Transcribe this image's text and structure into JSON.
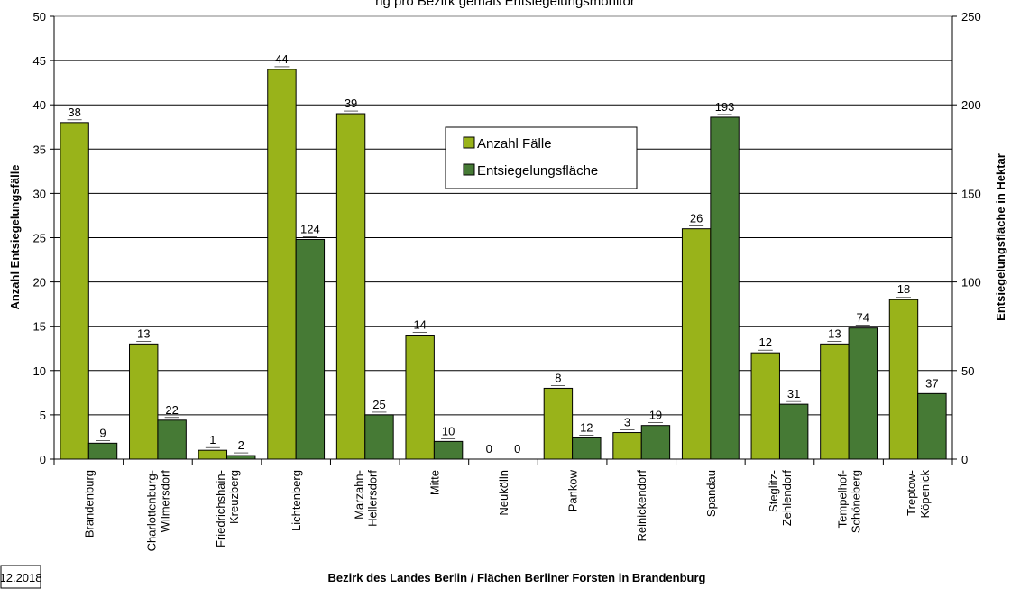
{
  "chart_data": {
    "type": "bar",
    "title": "ng pro Bezirk gemäß Entsiegelungsmonitor",
    "stamp": "12.2018",
    "xlabel": "Bezirk des Landes Berlin / Flächen Berliner Forsten in Brandenburg",
    "ylabel": "Anzahl Entsiegelungsfälle",
    "ylabel_right": "Entsiegelungsfläche in Hektar",
    "ylim": [
      0,
      50
    ],
    "ylim_right": [
      0,
      250
    ],
    "yticks": [
      "0",
      "5",
      "10",
      "15",
      "20",
      "25",
      "30",
      "35",
      "40",
      "45",
      "50"
    ],
    "yticks_right": [
      "0",
      "50",
      "100",
      "150",
      "200",
      "250"
    ],
    "grid": true,
    "legend_position": "center",
    "categories": [
      [
        "Brandenburg"
      ],
      [
        "Charlottenburg-",
        "Wilmersdorf"
      ],
      [
        "Friedrichshain-",
        "Kreuzberg"
      ],
      [
        "Lichtenberg"
      ],
      [
        "Marzahn-",
        "Hellersdorf"
      ],
      [
        "Mitte"
      ],
      [
        "Neukölln"
      ],
      [
        "Pankow"
      ],
      [
        "Reinickendorf"
      ],
      [
        "Spandau"
      ],
      [
        "Steglitz-",
        "Zehlendorf"
      ],
      [
        "Tempelhof-",
        "Schöneberg"
      ],
      [
        "Treptow-",
        "Köpenick"
      ]
    ],
    "series": [
      {
        "name": "Anzahl Fälle",
        "axis": "left",
        "color": "#99b31a",
        "values": [
          38,
          13,
          1,
          44,
          39,
          14,
          0,
          8,
          3,
          26,
          12,
          13,
          18
        ],
        "labels": [
          "38",
          "13",
          "1",
          "44",
          "39",
          "14",
          "0",
          "8",
          "3",
          "26",
          "12",
          "13",
          "18"
        ]
      },
      {
        "name": "Entsiegelungsfläche",
        "axis": "right",
        "color": "#467a35",
        "values": [
          9,
          22,
          2,
          124,
          25,
          10,
          0,
          12,
          19,
          193,
          31,
          74,
          37
        ],
        "labels": [
          "9",
          "22",
          "2",
          "124",
          "25",
          "10",
          "0",
          "12",
          "19",
          "193",
          "31",
          "74",
          "37"
        ]
      }
    ]
  }
}
